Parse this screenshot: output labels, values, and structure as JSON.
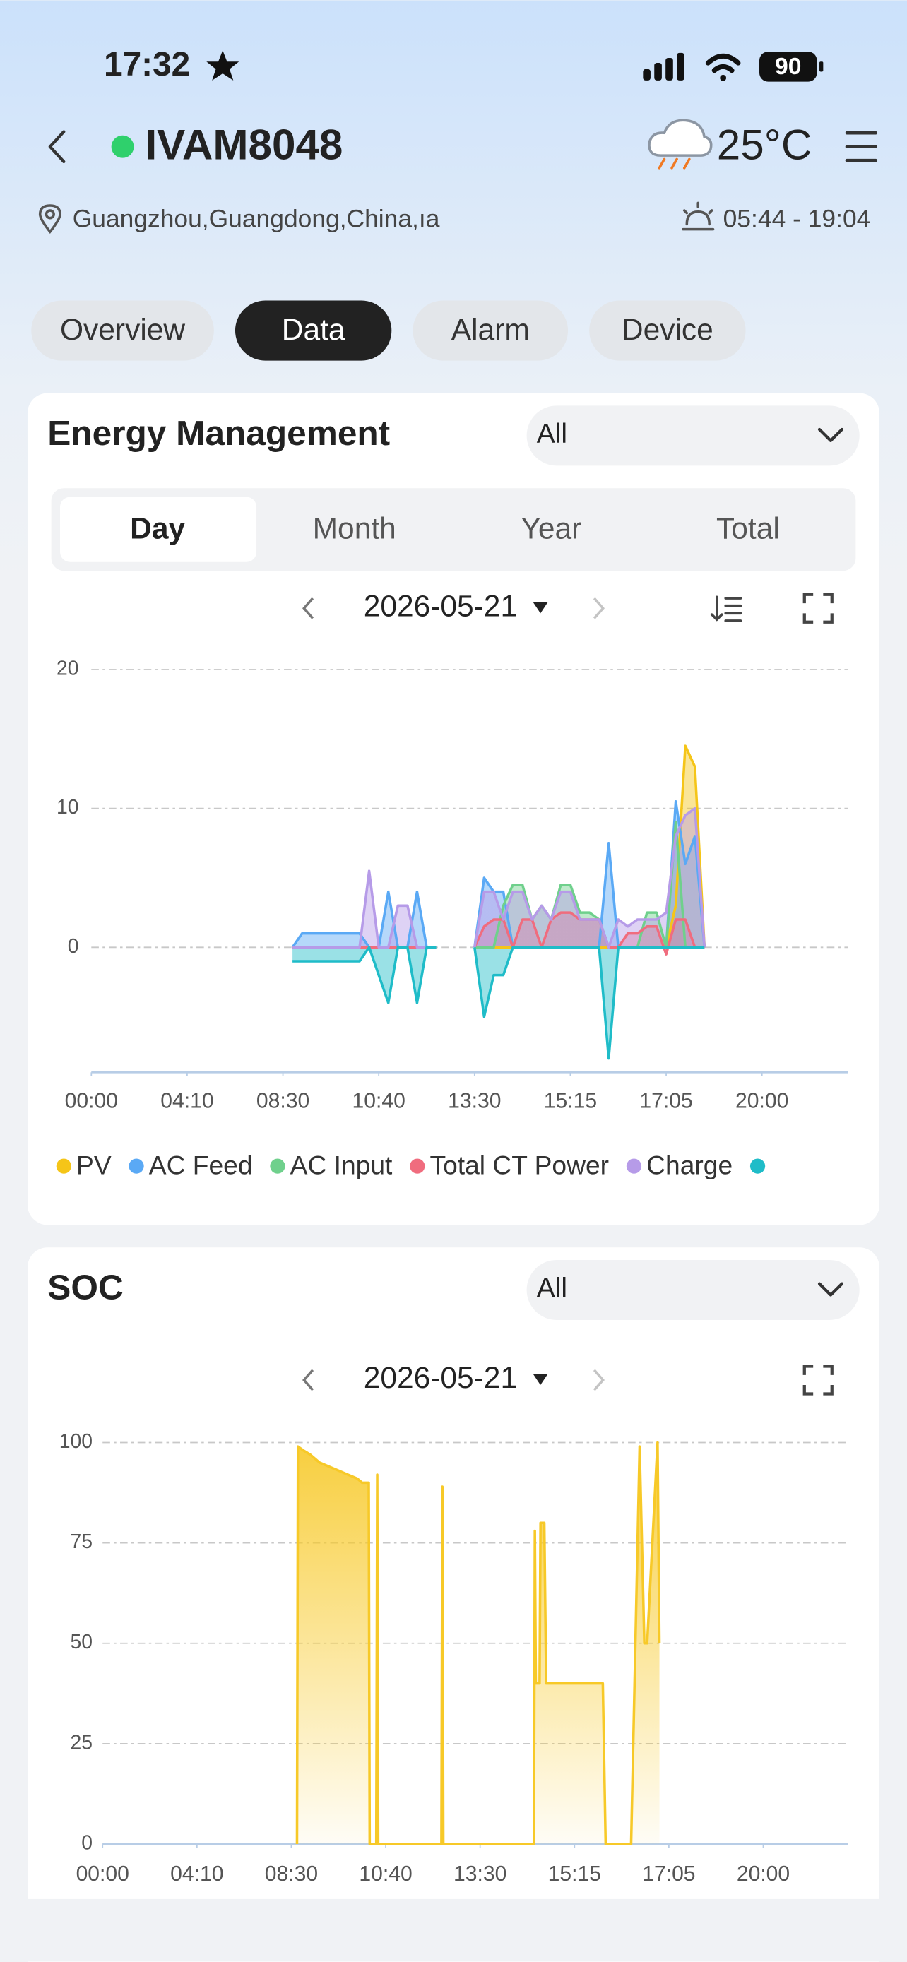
{
  "status_bar": {
    "time": "17:32",
    "battery": "90"
  },
  "header": {
    "device": "IVAM8048",
    "temperature": "25°C",
    "location": "Guangzhou,Guangdong,China,ıa",
    "sun_times": "05:44 - 19:04"
  },
  "tabs": [
    "Overview",
    "Data",
    "Alarm",
    "Device"
  ],
  "active_tab": 1,
  "chart_data": [
    {
      "type": "area",
      "title": "Energy Management",
      "filter": "All",
      "periods": [
        "Day",
        "Month",
        "Year",
        "Total"
      ],
      "active_period": 0,
      "date": "2026-05-21",
      "xlim": [
        0,
        79
      ],
      "xticks": [
        {
          "value": 0,
          "label": "00:00"
        },
        {
          "value": 10,
          "label": "04:10"
        },
        {
          "value": 20,
          "label": "08:30"
        },
        {
          "value": 30,
          "label": "10:40"
        },
        {
          "value": 40,
          "label": "13:30"
        },
        {
          "value": 50,
          "label": "15:15"
        },
        {
          "value": 60,
          "label": "17:05"
        },
        {
          "value": 70,
          "label": "20:00"
        }
      ],
      "ylim": [
        -9,
        20
      ],
      "yticks": [
        0,
        10,
        20
      ],
      "grid": true,
      "legend": "bottom",
      "x": [
        21,
        22,
        23,
        24,
        25,
        26,
        27,
        28,
        29,
        30,
        31,
        32,
        33,
        34,
        35,
        36,
        37,
        38,
        39,
        40,
        41,
        42,
        43,
        44,
        45,
        46,
        47,
        48,
        49,
        50,
        51,
        52,
        53,
        54,
        55,
        56,
        57,
        58,
        59,
        60,
        61,
        62,
        63,
        64
      ],
      "series": [
        {
          "name": "PV",
          "color": "#f5c518",
          "values": [
            0,
            0,
            0,
            0,
            0,
            0,
            0,
            0,
            0,
            0,
            0,
            0,
            0,
            0,
            0,
            0,
            null,
            null,
            null,
            0,
            0,
            0,
            0,
            0,
            0,
            0,
            0,
            0,
            0,
            0,
            0,
            0,
            0,
            0,
            0,
            0,
            0,
            0,
            0,
            0,
            3,
            14.5,
            13,
            0
          ]
        },
        {
          "name": "AC Feed",
          "color": "#5aa9f5",
          "values": [
            0,
            1,
            1,
            1,
            1,
            1,
            1,
            1,
            0,
            0,
            4,
            0,
            0,
            4,
            0,
            0,
            null,
            null,
            null,
            0,
            5,
            4,
            4,
            0,
            0,
            0,
            0,
            0,
            0,
            0,
            0,
            0,
            0,
            7.5,
            0,
            0,
            0,
            0,
            0,
            0,
            10.5,
            6,
            8,
            0
          ]
        },
        {
          "name": "AC Input",
          "color": "#6fd08c",
          "values": [
            0,
            0,
            0,
            0,
            0,
            0,
            0,
            0,
            0,
            0,
            0,
            0,
            0,
            0,
            0,
            0,
            null,
            null,
            null,
            0,
            0,
            0,
            3,
            4.5,
            4.5,
            2,
            3,
            2,
            4.5,
            4.5,
            2.5,
            2.5,
            2,
            0,
            0,
            0,
            0,
            2.5,
            2.5,
            0,
            9,
            0,
            0,
            0
          ]
        },
        {
          "name": "Total CT Power",
          "color": "#f06c7e",
          "values": [
            0,
            0,
            0,
            0,
            0,
            0,
            0,
            0,
            0,
            0,
            0,
            0,
            0,
            0,
            0,
            0,
            null,
            null,
            null,
            0,
            1.5,
            2,
            2,
            0,
            2,
            2,
            0,
            2,
            2.5,
            2.5,
            2,
            2,
            2,
            0,
            0,
            1,
            1,
            1.5,
            1.5,
            -0.5,
            2,
            2,
            0,
            0
          ]
        },
        {
          "name": "Charge",
          "color": "#b69be8",
          "values": [
            0,
            0,
            0,
            0,
            0,
            0,
            0,
            0,
            5.5,
            0,
            0,
            3,
            3,
            0,
            0,
            0,
            null,
            null,
            null,
            0,
            4,
            4,
            2,
            4,
            4,
            2,
            3,
            2,
            4,
            4,
            2,
            2,
            2,
            0,
            2,
            1.5,
            2,
            2,
            2,
            2.5,
            8,
            9.5,
            10,
            0
          ]
        },
        {
          "color": "#1fbcc8",
          "values": [
            -1,
            -1,
            -1,
            -1,
            -1,
            -1,
            -1,
            -1,
            0,
            -2,
            -4,
            0,
            0,
            -4,
            0,
            0,
            null,
            null,
            null,
            0,
            -5,
            -2,
            -2,
            0,
            0,
            0,
            0,
            0,
            0,
            0,
            0,
            0,
            0,
            -8,
            0,
            0,
            0,
            0,
            0,
            0,
            0,
            0,
            0,
            0
          ]
        }
      ]
    },
    {
      "type": "area",
      "title": "SOC",
      "filter": "All",
      "date": "2026-05-21",
      "xlim": [
        0,
        79
      ],
      "xticks": [
        {
          "value": 0,
          "label": "00:00"
        },
        {
          "value": 10,
          "label": "04:10"
        },
        {
          "value": 20,
          "label": "08:30"
        },
        {
          "value": 30,
          "label": "10:40"
        },
        {
          "value": 40,
          "label": "13:30"
        },
        {
          "value": 50,
          "label": "15:15"
        },
        {
          "value": 60,
          "label": "17:05"
        },
        {
          "value": 70,
          "label": "20:00"
        }
      ],
      "ylim": [
        0,
        100
      ],
      "yticks": [
        0,
        25,
        50,
        75,
        100
      ],
      "grid": true,
      "color": "#f7c928",
      "x": [
        20.6,
        20.7,
        21.3,
        22,
        23,
        24,
        25,
        26,
        27,
        27.5,
        28.2,
        28.3,
        29.0,
        29.1,
        29.2,
        35.9,
        36.0,
        36.1,
        45.7,
        45.8,
        45.9,
        46.3,
        46.4,
        46.8,
        47.0,
        53.0,
        53.3,
        56.0,
        56.9,
        57.4,
        57.7,
        58.8,
        59.0
      ],
      "values": [
        0,
        99,
        98,
        97,
        95,
        94,
        93,
        92,
        91,
        90,
        90,
        0,
        0,
        92,
        0,
        0,
        89,
        0,
        0,
        78,
        40,
        40,
        80,
        80,
        40,
        40,
        0,
        0,
        99,
        50,
        50,
        100,
        50
      ]
    }
  ]
}
